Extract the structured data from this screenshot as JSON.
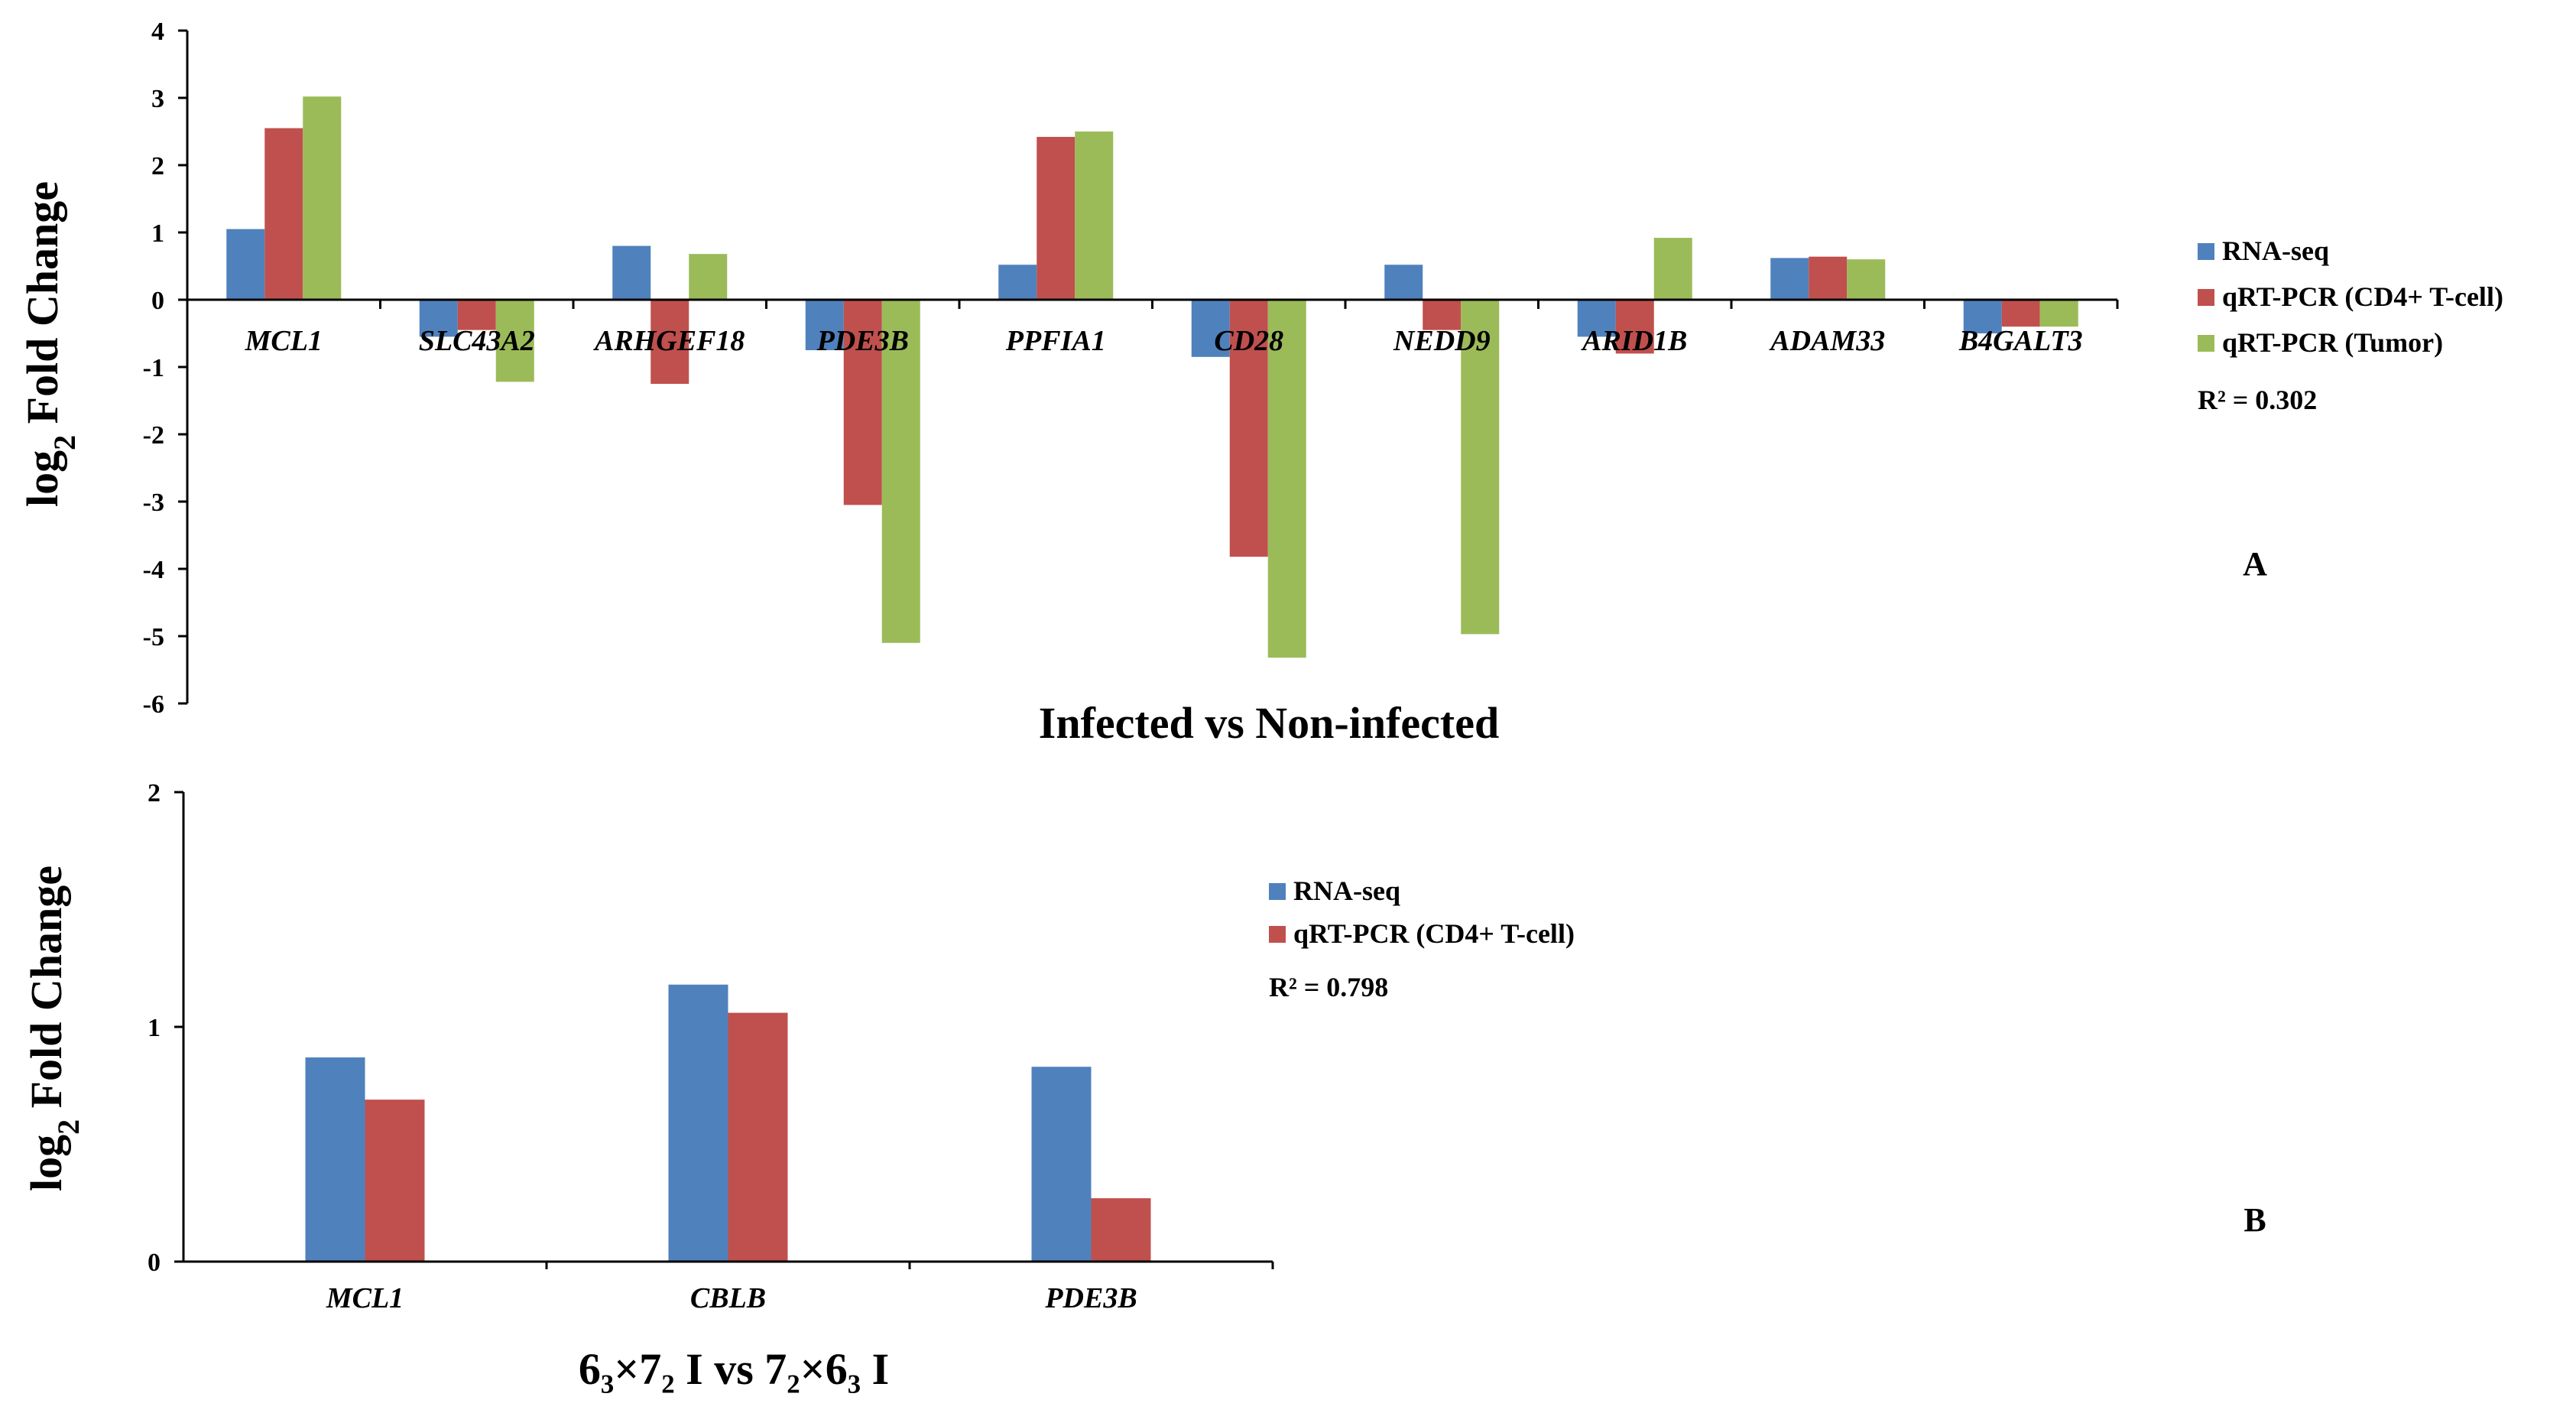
{
  "chart_data": [
    {
      "type": "bar",
      "panel_label": "A",
      "title": "Infected vs Non-infected",
      "xlabel": "Infected vs Non-infected",
      "ylabel": {
        "main": "log",
        "sub": "2",
        "rest": " Fold Change"
      },
      "ylim": [
        -6,
        4
      ],
      "yticks": [
        "4",
        "3",
        "2",
        "1",
        "0",
        "-1",
        "-2",
        "-3",
        "-4",
        "-5",
        "-6"
      ],
      "categories": [
        "MCL1",
        "SLC43A2",
        "ARHGEF18",
        "PDE3B",
        "PPFIA1",
        "CD28",
        "NEDD9",
        "ARID1B",
        "ADAM33",
        "B4GALT3"
      ],
      "series": [
        {
          "name": "RNA-seq",
          "color": "#4F81BD",
          "values": [
            1.05,
            -0.55,
            0.8,
            -0.75,
            0.52,
            -0.85,
            0.52,
            -0.55,
            0.62,
            -0.5
          ]
        },
        {
          "name": "qRT-PCR (CD4+ T-cell)",
          "color": "#C0504D",
          "values": [
            2.55,
            -0.45,
            -1.25,
            -3.05,
            2.42,
            -3.82,
            -0.45,
            -0.8,
            0.64,
            -0.4
          ]
        },
        {
          "name": "qRT-PCR (Tumor)",
          "color": "#9BBB59",
          "values": [
            3.02,
            -1.22,
            0.68,
            -5.1,
            2.5,
            -5.32,
            -4.97,
            0.92,
            0.6,
            -0.4
          ]
        }
      ],
      "r2_text": "R² = 0.302",
      "legend_position": "right"
    },
    {
      "type": "bar",
      "panel_label": "B",
      "title": "6₃×7₂ I vs 7₂×6₃ I",
      "xlabel": "6₃×7₂ I vs 7₂×6₃ I",
      "ylabel": {
        "main": "log",
        "sub": "2",
        "rest": " Fold Change"
      },
      "ylim": [
        0,
        2
      ],
      "yticks": [
        "2",
        "1",
        "0"
      ],
      "categories": [
        "MCL1",
        "CBLB",
        "PDE3B"
      ],
      "series": [
        {
          "name": "RNA-seq",
          "color": "#4F81BD",
          "values": [
            0.87,
            1.18,
            0.83
          ]
        },
        {
          "name": "qRT-PCR (CD4+ T-cell)",
          "color": "#C0504D",
          "values": [
            0.69,
            1.06,
            0.27
          ]
        }
      ],
      "r2_text": "R² = 0.798",
      "legend_position": "right"
    }
  ]
}
